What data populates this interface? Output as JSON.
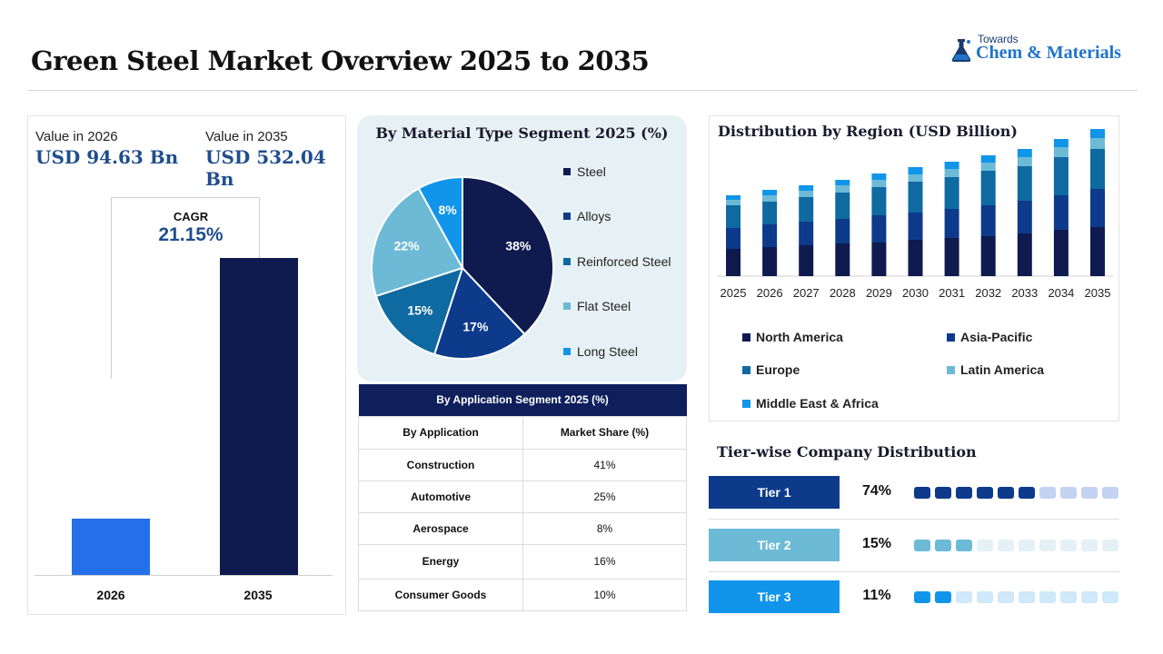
{
  "page": {
    "title": "Green Steel Market Overview 2025 to 2035",
    "logo_small": "Towards",
    "logo_big": "Chem & Materials"
  },
  "colors": {
    "navy": "#0f1a4f",
    "blue": "#2470e8",
    "table_header": "#0f1f5c",
    "value_text": "#1f4e8c"
  },
  "value_panel": {
    "label_2026": "Value in 2026",
    "value_2026": "USD 94.63 Bn",
    "label_2035": "Value in 2035",
    "value_2035": "USD 532.04 Bn",
    "cagr_label": "CAGR",
    "cagr_value": "21.15%"
  },
  "table": {
    "title": "By Application Segment 2025 (%)",
    "col1": "By Application",
    "col2": "Market Share (%)",
    "rows": [
      {
        "app": "Construction",
        "share": "41%"
      },
      {
        "app": "Automotive",
        "share": "25%"
      },
      {
        "app": "Aerospace",
        "share": "8%"
      },
      {
        "app": "Energy",
        "share": "16%"
      },
      {
        "app": "Consumer Goods",
        "share": "10%"
      }
    ]
  },
  "tiers": {
    "title": "Tier-wise Company Distribution",
    "items": [
      {
        "label": "Tier 1",
        "pct": "74%",
        "filled": 6,
        "color": "#0d3a8a",
        "light": "#c3d3f2"
      },
      {
        "label": "Tier 2",
        "pct": "15%",
        "filled": 3,
        "color": "#6dbad6",
        "light": "#e4f1f6"
      },
      {
        "label": "Tier 3",
        "pct": "11%",
        "filled": 2,
        "color": "#1095ea",
        "light": "#cfe8fa"
      }
    ],
    "dots_total": 10
  },
  "chart_data": [
    {
      "type": "bar",
      "categories": [
        "2026",
        "2035"
      ],
      "values": [
        94.63,
        532.04
      ],
      "colors": [
        "#2470e8",
        "#0f1a4f"
      ]
    },
    {
      "type": "pie",
      "title": "By Material Type Segment 2025 (%)",
      "labels": [
        "Steel",
        "Alloys",
        "Reinforced Steel",
        "Flat Steel",
        "Long Steel"
      ],
      "values": [
        38,
        17,
        15,
        22,
        8
      ],
      "colors": [
        "#0f1a4f",
        "#0d3a8a",
        "#0e6aa0",
        "#6dbad6",
        "#1095ea"
      ]
    },
    {
      "type": "bar",
      "stacked": true,
      "title": "Distribution by Region (USD Billion)",
      "categories": [
        "2025",
        "2026",
        "2027",
        "2028",
        "2029",
        "2030",
        "2031",
        "2032",
        "2033",
        "2034",
        "2035"
      ],
      "series": [
        {
          "name": "North America",
          "color": "#0f1a4f",
          "values": [
            30,
            32,
            34,
            36,
            37,
            40,
            42,
            44,
            47,
            51,
            54
          ]
        },
        {
          "name": "Asia-Pacific",
          "color": "#0d3a8a",
          "values": [
            23,
            25,
            26,
            27,
            30,
            30,
            32,
            34,
            36,
            38,
            42
          ]
        },
        {
          "name": "Europe",
          "color": "#0e6aa0",
          "values": [
            25,
            25,
            27,
            29,
            31,
            34,
            35,
            38,
            38,
            42,
            44
          ]
        },
        {
          "name": "Latin America",
          "color": "#6dbad6",
          "values": [
            6,
            7,
            7,
            8,
            8,
            8,
            9,
            9,
            10,
            11,
            12
          ]
        },
        {
          "name": "Middle East & Africa",
          "color": "#1095ea",
          "values": [
            5,
            6,
            6,
            6,
            7,
            8,
            8,
            8,
            9,
            9,
            10
          ]
        }
      ]
    }
  ]
}
